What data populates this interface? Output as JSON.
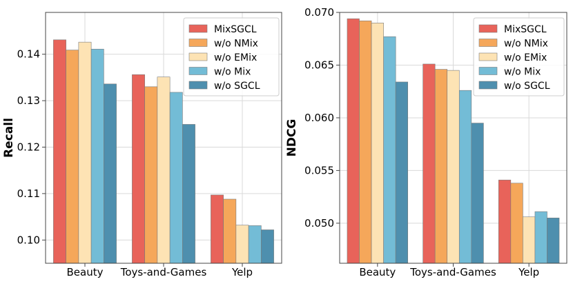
{
  "chart_data": [
    {
      "type": "bar",
      "title": "",
      "xlabel": "",
      "ylabel": "Recall",
      "categories": [
        "Beauty",
        "Toys-and-Games",
        "Yelp"
      ],
      "ylim": [
        0.095,
        0.149
      ],
      "yticks": [
        0.1,
        0.11,
        0.12,
        0.13,
        0.14
      ],
      "ytick_labels": [
        "0.10",
        "0.11",
        "0.12",
        "0.13",
        "0.14"
      ],
      "grid": true,
      "legend_position": "top-right",
      "series": [
        {
          "name": "MixSGCL",
          "color": "#E8635A",
          "values": [
            0.1431,
            0.1356,
            0.1097
          ]
        },
        {
          "name": "w/o NMix",
          "color": "#F5A75A",
          "values": [
            0.1409,
            0.133,
            0.1088
          ]
        },
        {
          "name": "w/o EMix",
          "color": "#FDE3B4",
          "values": [
            0.1426,
            0.1351,
            0.1032
          ]
        },
        {
          "name": "w/o Mix",
          "color": "#73BCD6",
          "values": [
            0.1411,
            0.1318,
            0.1031
          ]
        },
        {
          "name": "w/o SGCL",
          "color": "#4E8FAE",
          "values": [
            0.1336,
            0.1249,
            0.1022
          ]
        }
      ]
    },
    {
      "type": "bar",
      "title": "",
      "xlabel": "",
      "ylabel": "NDCG",
      "categories": [
        "Beauty",
        "Toys-and-Games",
        "Yelp"
      ],
      "ylim": [
        0.0462,
        0.07
      ],
      "yticks": [
        0.05,
        0.055,
        0.06,
        0.065,
        0.07
      ],
      "ytick_labels": [
        "0.050",
        "0.055",
        "0.060",
        "0.065",
        "0.070"
      ],
      "grid": true,
      "legend_position": "top-right",
      "series": [
        {
          "name": "MixSGCL",
          "color": "#E8635A",
          "values": [
            0.0694,
            0.0651,
            0.0541
          ]
        },
        {
          "name": "w/o NMix",
          "color": "#F5A75A",
          "values": [
            0.0692,
            0.0646,
            0.0538
          ]
        },
        {
          "name": "w/o EMix",
          "color": "#FDE3B4",
          "values": [
            0.069,
            0.0645,
            0.0506
          ]
        },
        {
          "name": "w/o Mix",
          "color": "#73BCD6",
          "values": [
            0.0677,
            0.0626,
            0.0511
          ]
        },
        {
          "name": "w/o SGCL",
          "color": "#4E8FAE",
          "values": [
            0.0634,
            0.0595,
            0.0505
          ]
        }
      ]
    }
  ]
}
